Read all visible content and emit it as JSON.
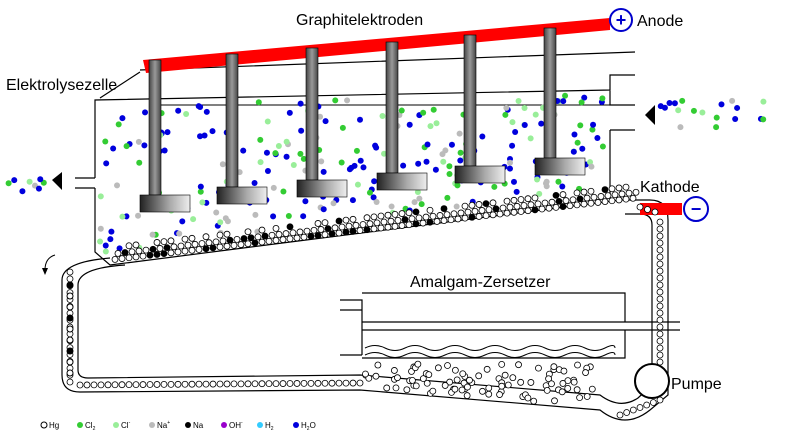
{
  "labels": {
    "electrodes": "Graphitelektroden",
    "anode": "Anode",
    "anode_sign": "+",
    "cell": "Elektrolysezelle",
    "cathode": "Kathode",
    "cathode_sign": "−",
    "decomposer": "Amalgam-Zersetzer",
    "pump": "Pumpe"
  },
  "legend": [
    {
      "label": "Hg"
    },
    {
      "label": "Cl",
      "sub": "2"
    },
    {
      "label": "Cl",
      "sup": "-"
    },
    {
      "label": "Na",
      "sup": "+"
    },
    {
      "label": "Na"
    },
    {
      "label": "OH",
      "sup": "-"
    },
    {
      "label": "H",
      "sub": "2"
    },
    {
      "label": "H",
      "sub": "2",
      "tail": "O"
    }
  ]
}
